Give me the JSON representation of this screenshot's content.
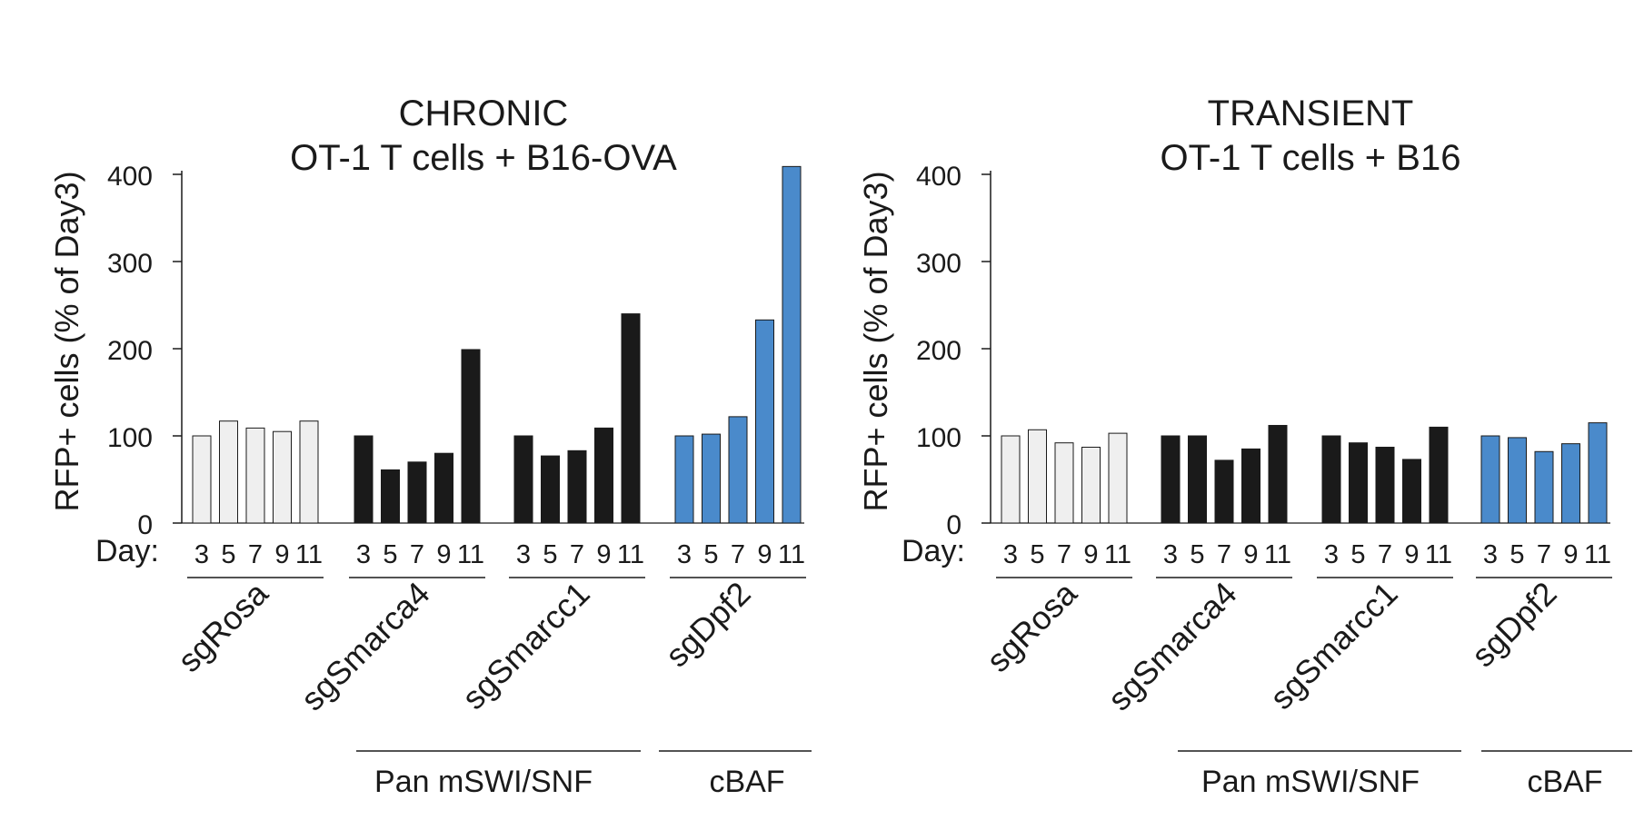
{
  "figure": {
    "day_label": "Day:",
    "days": [
      "3",
      "5",
      "7",
      "9",
      "11"
    ],
    "y_label": "RFP+ cells (% of Day3)",
    "y_ticks": [
      0,
      100,
      200,
      300,
      400
    ],
    "ylim": [
      0,
      400
    ],
    "bracket_labels": {
      "pan": "Pan mSWI/SNF",
      "cbaf": "cBAF"
    }
  },
  "chart_data": [
    {
      "type": "bar",
      "title_line1": "CHRONIC",
      "title_line2": "OT-1 T cells + B16-OVA",
      "ylabel": "RFP+ cells (% of Day3)",
      "ylim": [
        0,
        400
      ],
      "categories": [
        "3",
        "5",
        "7",
        "9",
        "11"
      ],
      "series": [
        {
          "name": "sgRosa",
          "color": "#efefef",
          "values": [
            100,
            117,
            109,
            105,
            117
          ]
        },
        {
          "name": "sgSmarca4",
          "color": "#1a1a1a",
          "values": [
            100,
            61,
            70,
            80,
            199
          ]
        },
        {
          "name": "sgSmarcc1",
          "color": "#1a1a1a",
          "values": [
            100,
            77,
            83,
            109,
            240
          ]
        },
        {
          "name": "sgDpf2",
          "color": "#4a8acb",
          "values": [
            100,
            102,
            122,
            233,
            409
          ]
        }
      ]
    },
    {
      "type": "bar",
      "title_line1": "TRANSIENT",
      "title_line2": "OT-1 T cells + B16",
      "ylabel": "RFP+ cells (% of Day3)",
      "ylim": [
        0,
        400
      ],
      "categories": [
        "3",
        "5",
        "7",
        "9",
        "11"
      ],
      "series": [
        {
          "name": "sgRosa",
          "color": "#efefef",
          "values": [
            100,
            107,
            92,
            87,
            103
          ]
        },
        {
          "name": "sgSmarca4",
          "color": "#1a1a1a",
          "values": [
            100,
            100,
            72,
            85,
            112
          ]
        },
        {
          "name": "sgSmarcc1",
          "color": "#1a1a1a",
          "values": [
            100,
            92,
            87,
            73,
            110
          ]
        },
        {
          "name": "sgDpf2",
          "color": "#4a8acb",
          "values": [
            100,
            98,
            82,
            91,
            115
          ]
        }
      ]
    }
  ]
}
